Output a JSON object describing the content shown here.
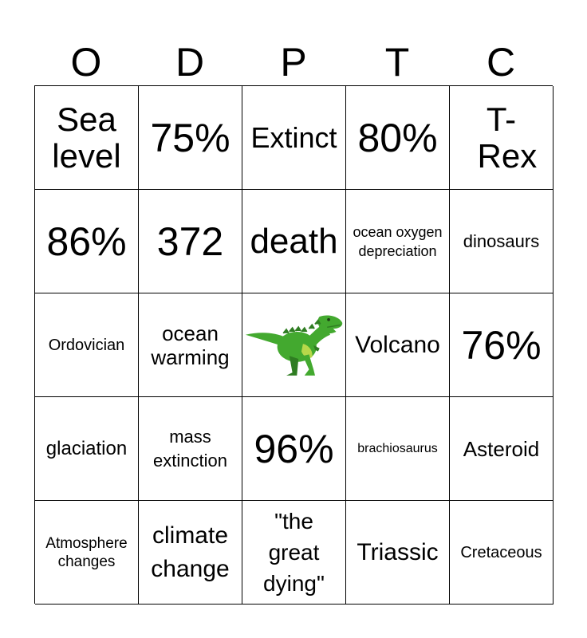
{
  "header": {
    "letters": [
      "O",
      "D",
      "P",
      "T",
      "C"
    ]
  },
  "board": {
    "rows": [
      [
        "Sea level",
        "75%",
        "Extinct",
        "80%",
        "T-Rex"
      ],
      [
        "86%",
        "372",
        "death",
        "ocean oxygen depreciation",
        "dinosaurs"
      ],
      [
        "Ordovician",
        "ocean warming",
        "",
        "Volcano",
        "76%"
      ],
      [
        "glaciation",
        "mass extinction",
        "96%",
        "brachiosaurus",
        "Asteroid"
      ],
      [
        "Atmosphere changes",
        "climate change",
        "\"the great dying\"",
        "Triassic",
        "Cretaceous"
      ]
    ],
    "free_space_icon": "t-rex-dinosaur-icon"
  },
  "colors": {
    "dino_body": "#43a92f",
    "dino_dark": "#2f7d22",
    "dino_belly": "#b7d84a",
    "grid_line": "#000000"
  }
}
